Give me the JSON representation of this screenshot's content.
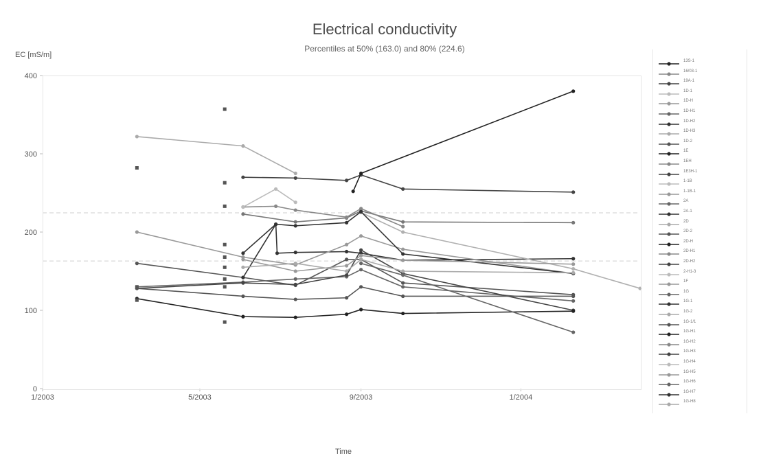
{
  "chart_data": {
    "type": "line",
    "title": "Electrical conductivity",
    "subtitle": "Percentiles at 50% (163.0) and 80% (224.6)",
    "ylabel": "EC [mS/m]",
    "xlabel": "Time",
    "ylim": [
      0,
      400
    ],
    "yticks": [
      0,
      100,
      200,
      300,
      400
    ],
    "xlim": [
      "2003-01-01",
      "2004-04-01"
    ],
    "xticks": [
      {
        "date": "2003-01-01",
        "label": "1/2003"
      },
      {
        "date": "2003-05-01",
        "label": "5/2003"
      },
      {
        "date": "2003-09-01",
        "label": "9/2003"
      },
      {
        "date": "2004-01-01",
        "label": "1/2004"
      }
    ],
    "percentiles": [
      {
        "label": "50%",
        "value": 163.0
      },
      {
        "label": "80%",
        "value": 224.6
      }
    ],
    "grid": false,
    "legend_position": "right",
    "series": [
      {
        "name": "13S-1",
        "color": "#444444",
        "points": [
          [
            "2003-06-03",
            270
          ],
          [
            "2003-07-13",
            269
          ],
          [
            "2003-08-21",
            266
          ],
          [
            "2003-09-01",
            273
          ],
          [
            "2003-10-03",
            255
          ],
          [
            "2004-02-10",
            251
          ]
        ]
      },
      {
        "name": "16/03-1",
        "color": "#777777",
        "points": [
          [
            "2003-06-03",
            223
          ],
          [
            "2003-07-13",
            213
          ],
          [
            "2003-08-21",
            218
          ],
          [
            "2003-09-01",
            227
          ],
          [
            "2003-10-03",
            213
          ],
          [
            "2004-02-10",
            212
          ]
        ]
      },
      {
        "name": "19A-1",
        "color": "#333333",
        "points": [
          [
            "2003-06-03",
            173
          ],
          [
            "2003-06-28",
            210
          ],
          [
            "2003-06-29",
            173
          ],
          [
            "2003-07-13",
            174
          ],
          [
            "2003-08-21",
            175
          ],
          [
            "2003-09-01",
            173
          ],
          [
            "2003-10-03",
            164
          ],
          [
            "2004-02-10",
            166
          ]
        ]
      },
      {
        "name": "1D-1",
        "color": "#aaaaaa",
        "points": [
          [
            "2003-03-14",
            322
          ],
          [
            "2003-06-03",
            310
          ],
          [
            "2003-07-13",
            275
          ]
        ]
      },
      {
        "name": "1D-H",
        "color": "#999999",
        "points": [
          [
            "2003-03-14",
            200
          ],
          [
            "2003-06-03",
            168
          ],
          [
            "2003-07-13",
            158
          ],
          [
            "2003-08-21",
            184
          ],
          [
            "2003-09-01",
            195
          ],
          [
            "2003-10-03",
            178
          ],
          [
            "2004-02-10",
            147
          ]
        ]
      },
      {
        "name": "1D-H1",
        "color": "#b0b0b0",
        "points": [
          [
            "2003-09-01",
            225
          ],
          [
            "2003-10-03",
            200
          ],
          [
            "2004-02-10",
            153
          ],
          [
            "2004-04-01",
            128
          ]
        ]
      },
      {
        "name": "1D-H2",
        "color": "#555555",
        "points": [
          [
            "2003-03-14",
            160
          ],
          [
            "2003-06-03",
            142
          ],
          [
            "2003-07-13",
            132
          ],
          [
            "2003-08-21",
            165
          ],
          [
            "2003-09-01",
            165
          ],
          [
            "2003-10-03",
            135
          ],
          [
            "2004-02-10",
            120
          ]
        ]
      },
      {
        "name": "1D-H3",
        "color": "#888888",
        "points": [
          [
            "2003-06-03",
            232
          ],
          [
            "2003-06-28",
            233
          ],
          [
            "2003-07-13",
            228
          ],
          [
            "2003-08-21",
            219
          ],
          [
            "2003-09-01",
            230
          ],
          [
            "2003-10-03",
            207
          ]
        ]
      },
      {
        "name": "1D-2",
        "color": "#333333",
        "points": [
          [
            "2003-06-03",
            142
          ],
          [
            "2003-06-28",
            210
          ],
          [
            "2003-07-13",
            208
          ],
          [
            "2003-08-21",
            212
          ],
          [
            "2003-09-01",
            226
          ],
          [
            "2003-10-03",
            172
          ],
          [
            "2004-02-10",
            147
          ]
        ]
      },
      {
        "name": "1E",
        "color": "#666666",
        "points": [
          [
            "2003-03-14",
            130
          ],
          [
            "2003-06-03",
            136
          ],
          [
            "2003-07-13",
            140
          ],
          [
            "2003-08-21",
            143
          ],
          [
            "2003-09-01",
            152
          ],
          [
            "2003-10-03",
            130
          ],
          [
            "2004-02-10",
            112
          ]
        ]
      },
      {
        "name": "1EH",
        "color": "#444444",
        "points": [
          [
            "2003-03-14",
            128
          ],
          [
            "2003-06-03",
            135
          ],
          [
            "2003-07-13",
            133
          ],
          [
            "2003-08-21",
            145
          ],
          [
            "2003-09-01",
            177
          ],
          [
            "2003-10-03",
            147
          ],
          [
            "2004-02-10",
            100
          ]
        ]
      },
      {
        "name": "1E3H-1",
        "color": "#999999",
        "points": [
          [
            "2003-06-03",
            165
          ],
          [
            "2003-07-13",
            150
          ],
          [
            "2003-08-21",
            157
          ],
          [
            "2003-09-01",
            170
          ],
          [
            "2003-10-03",
            164
          ],
          [
            "2004-02-10",
            159
          ]
        ]
      },
      {
        "name": "1-1B",
        "color": "#aaaaaa",
        "points": [
          [
            "2003-06-03",
            155
          ],
          [
            "2003-07-13",
            160
          ],
          [
            "2003-08-21",
            150
          ],
          [
            "2003-09-01",
            165
          ],
          [
            "2003-10-03",
            150
          ],
          [
            "2004-02-10",
            148
          ]
        ]
      },
      {
        "name": "2A",
        "color": "#222222",
        "points": [
          [
            "2003-08-26",
            252
          ],
          [
            "2003-09-01",
            275
          ],
          [
            "2004-02-10",
            380
          ]
        ]
      },
      {
        "name": "2D",
        "color": "#222222",
        "points": [
          [
            "2003-03-14",
            115
          ],
          [
            "2003-06-03",
            92
          ],
          [
            "2003-07-13",
            91
          ],
          [
            "2003-08-21",
            95
          ],
          [
            "2003-09-01",
            101
          ],
          [
            "2003-10-03",
            96
          ],
          [
            "2004-02-10",
            99
          ]
        ]
      },
      {
        "name": "1G",
        "color": "#555555",
        "points": [
          [
            "2003-03-14",
            128
          ],
          [
            "2003-06-03",
            118
          ],
          [
            "2003-07-13",
            114
          ],
          [
            "2003-08-21",
            116
          ],
          [
            "2003-09-01",
            130
          ],
          [
            "2003-10-03",
            118
          ],
          [
            "2004-02-10",
            118
          ]
        ]
      },
      {
        "name": "1G-1",
        "color": "#bbbbbb",
        "points": [
          [
            "2003-06-03",
            232
          ],
          [
            "2003-06-28",
            255
          ],
          [
            "2003-07-13",
            238
          ]
        ]
      },
      {
        "name": "1G-2",
        "color": "#666666",
        "points": [
          [
            "2003-09-01",
            160
          ],
          [
            "2003-10-03",
            145
          ],
          [
            "2004-02-10",
            72
          ]
        ]
      }
    ],
    "markers_only": [
      {
        "date": "2003-03-14",
        "values": [
          282,
          130,
          113
        ]
      },
      {
        "date": "2003-05-20",
        "values": [
          357,
          263,
          233,
          184,
          168,
          155,
          140,
          130,
          85
        ]
      }
    ],
    "legend_entries": [
      "13S-1",
      "16/03-1",
      "19A-1",
      "1D-1",
      "1D-H",
      "1D-H1",
      "1D-H2",
      "1D-H3",
      "1D-2",
      "1E",
      "1EH",
      "1E3H-1",
      "1-1B",
      "1-1B-1",
      "2A",
      "2A-1",
      "2D",
      "2D-2",
      "2D-H",
      "2D-H1",
      "2D-H2",
      "2-H1-3",
      "1F",
      "1G",
      "1G-1",
      "1G-2",
      "1G-1/1",
      "1G-H1",
      "1G-H2",
      "1G-H3",
      "1G-H4",
      "1G-H5",
      "1G-H6",
      "1G-H7",
      "1G-H8"
    ]
  }
}
